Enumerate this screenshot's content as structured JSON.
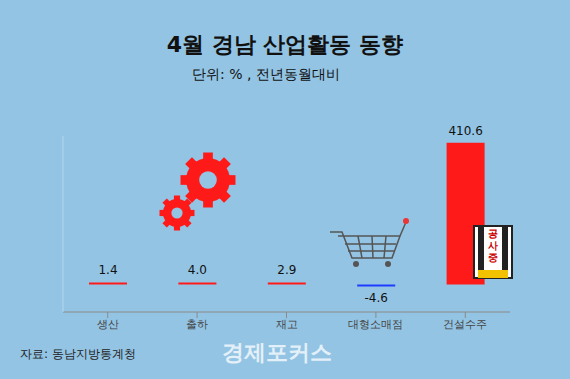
{
  "chart_data": {
    "type": "bar",
    "title": "4월 경남 산업활동 동향",
    "subtitle": "단위: % , 전년동월대비",
    "categories": [
      "생산",
      "출하",
      "재고",
      "대형소매점",
      "건설수주"
    ],
    "values": [
      1.4,
      4.0,
      2.9,
      -4.6,
      410.6
    ],
    "value_labels": [
      "1.4",
      "4.0",
      "2.9",
      "-4.6",
      "410.6"
    ],
    "colors": [
      "#ff1a1a",
      "#ff1a1a",
      "#ff1a1a",
      "#1f3cff",
      "#ff1a1a"
    ],
    "ylim": [
      -80,
      430
    ],
    "yticks": [],
    "tick_labels": "x",
    "data_labels": true,
    "annotations": [
      "공사중",
      "자료: 동남지방통계청",
      "경제포커스"
    ]
  }
}
